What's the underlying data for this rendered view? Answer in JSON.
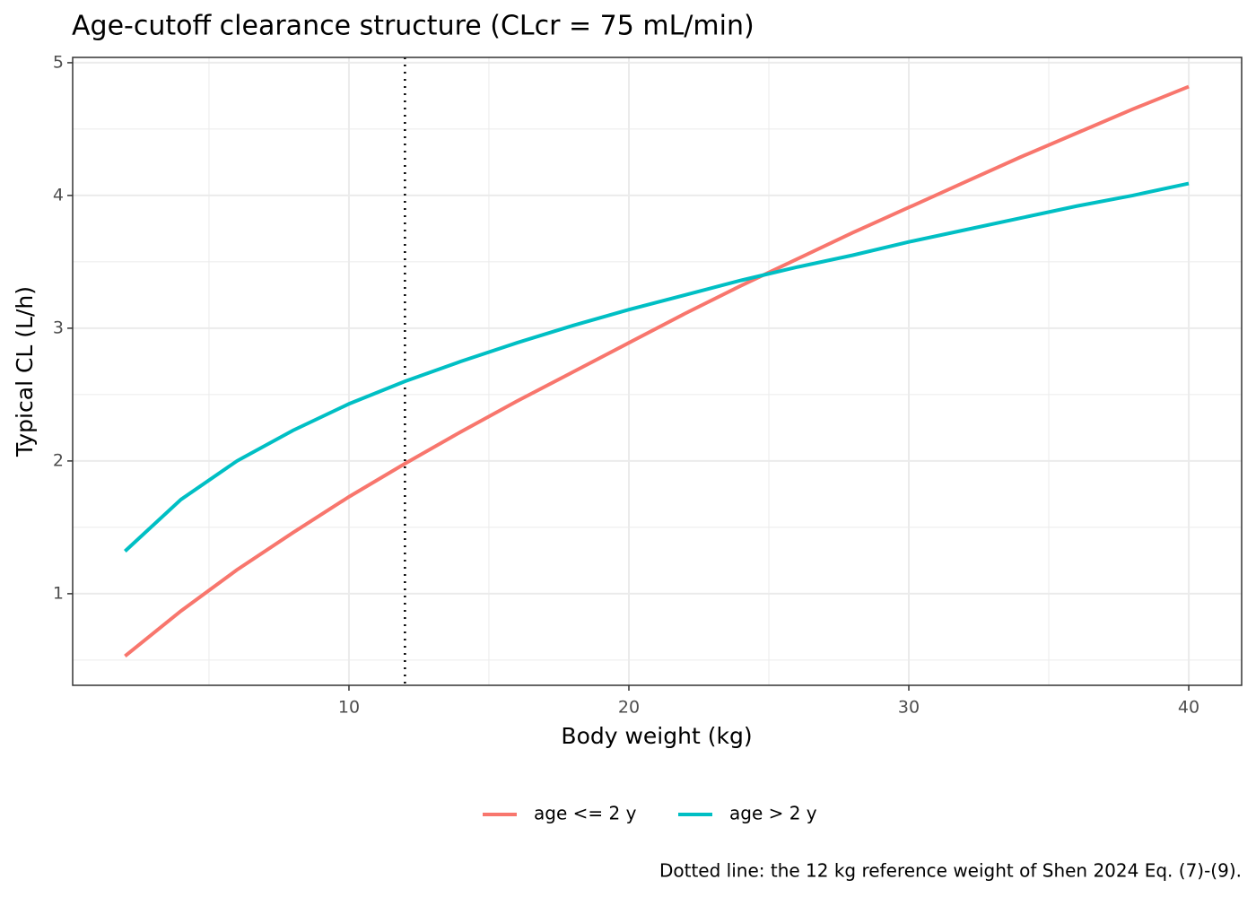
{
  "chart_data": {
    "type": "line",
    "title": "Age-cutoff clearance structure (CLcr = 75 mL/min)",
    "x_label": "Body weight (kg)",
    "y_label": "Typical CL (L/h)",
    "caption": "Dotted line: the 12 kg reference weight of Shen 2024 Eq. (7)-(9).",
    "x": [
      2,
      4,
      6,
      8,
      10,
      12,
      14,
      16,
      18,
      20,
      22,
      24,
      26,
      28,
      30,
      32,
      34,
      36,
      38,
      40
    ],
    "series": [
      {
        "name": "age <= 2 y",
        "color": "#f8766d",
        "values": [
          0.53,
          0.87,
          1.18,
          1.46,
          1.73,
          1.98,
          2.22,
          2.45,
          2.67,
          2.89,
          3.11,
          3.32,
          3.52,
          3.72,
          3.91,
          4.1,
          4.29,
          4.47,
          4.65,
          4.82
        ]
      },
      {
        "name": "age > 2 y",
        "color": "#00bfc4",
        "values": [
          1.32,
          1.71,
          2.0,
          2.23,
          2.43,
          2.6,
          2.75,
          2.89,
          3.02,
          3.14,
          3.25,
          3.36,
          3.46,
          3.55,
          3.65,
          3.74,
          3.83,
          3.92,
          4.0,
          4.09
        ]
      }
    ],
    "xlim": [
      0.13,
      41.89
    ],
    "ylim": [
      0.31,
      5.04
    ],
    "xticks": [
      10,
      20,
      30,
      40
    ],
    "yticks": [
      1,
      2,
      3,
      4,
      5
    ],
    "x_minor_grid": [
      5,
      15,
      25,
      35
    ],
    "y_minor_grid": [
      0.5,
      1.5,
      2.5,
      3.5,
      4.5
    ],
    "reference_x": 12,
    "grid": true,
    "legend": "bottom"
  }
}
